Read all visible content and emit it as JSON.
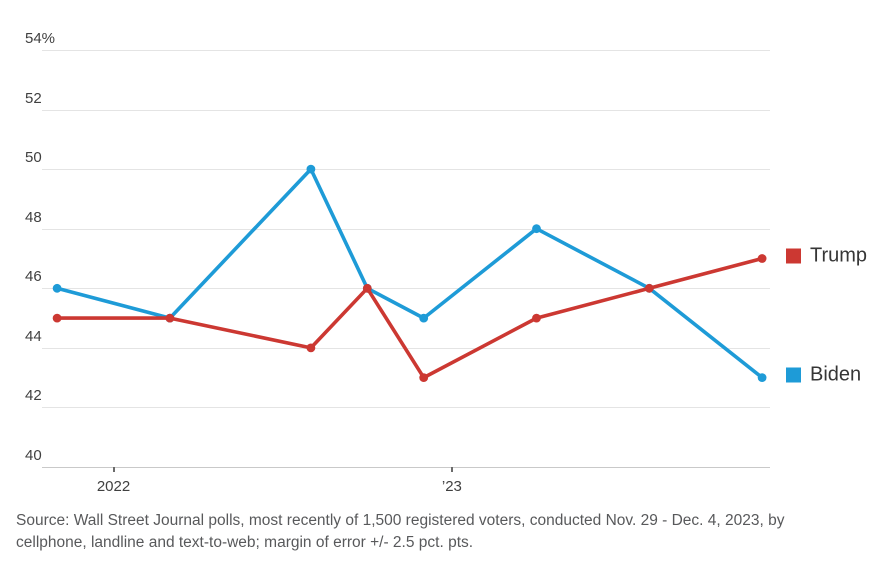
{
  "chart_data": {
    "type": "line",
    "title": "",
    "x": [
      "Nov 2021",
      "Mar 2022",
      "Aug 2022",
      "Oct 2022",
      "Dec 2022",
      "Apr 2023",
      "Aug 2023",
      "Dec 2023"
    ],
    "x_month_offsets": [
      -2,
      2,
      7,
      9,
      11,
      15,
      19,
      23
    ],
    "series": [
      {
        "name": "Biden",
        "color": "#1e9bd7",
        "values": [
          46,
          45,
          50,
          46,
          45,
          48,
          46,
          43
        ]
      },
      {
        "name": "Trump",
        "color": "#cc3832",
        "values": [
          45,
          45,
          44,
          46,
          43,
          45,
          46,
          47
        ]
      }
    ],
    "ylim": [
      40,
      54
    ],
    "yticks": [
      {
        "value": 54,
        "label": "54%"
      },
      {
        "value": 52,
        "label": "52"
      },
      {
        "value": 50,
        "label": "50"
      },
      {
        "value": 48,
        "label": "48"
      },
      {
        "value": 46,
        "label": "46"
      },
      {
        "value": 44,
        "label": "44"
      },
      {
        "value": 42,
        "label": "42"
      },
      {
        "value": 40,
        "label": "40"
      }
    ],
    "xticks": [
      {
        "label": "2022",
        "month": 0
      },
      {
        "label": "’23",
        "month": 12
      }
    ],
    "grid": true,
    "legend_position": "right"
  },
  "footer": {
    "source_line1": "Source: Wall Street Journal polls, most recently of 1,500 registered voters, conducted Nov. 29 - Dec. 4, 2023, by",
    "source_line2": "cellphone, landline and text-to-web; margin of error +/- 2.5 pct. pts."
  }
}
